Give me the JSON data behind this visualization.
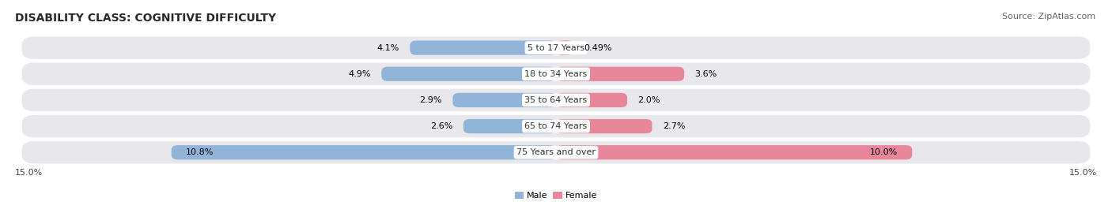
{
  "title": "DISABILITY CLASS: COGNITIVE DIFFICULTY",
  "source": "Source: ZipAtlas.com",
  "categories": [
    "5 to 17 Years",
    "18 to 34 Years",
    "35 to 64 Years",
    "65 to 74 Years",
    "75 Years and over"
  ],
  "male_values": [
    4.1,
    4.9,
    2.9,
    2.6,
    10.8
  ],
  "female_values": [
    0.49,
    3.6,
    2.0,
    2.7,
    10.0
  ],
  "male_labels": [
    "4.1%",
    "4.9%",
    "2.9%",
    "2.6%",
    "10.8%"
  ],
  "female_labels": [
    "0.49%",
    "3.6%",
    "2.0%",
    "2.7%",
    "10.0%"
  ],
  "male_color": "#92b4d8",
  "female_color": "#e8879c",
  "bg_row_color": "#e8e8ec",
  "max_val": 15.0,
  "axis_label_left": "15.0%",
  "axis_label_right": "15.0%",
  "legend_male": "Male",
  "legend_female": "Female",
  "title_fontsize": 10,
  "source_fontsize": 8,
  "label_fontsize": 8,
  "category_fontsize": 8
}
